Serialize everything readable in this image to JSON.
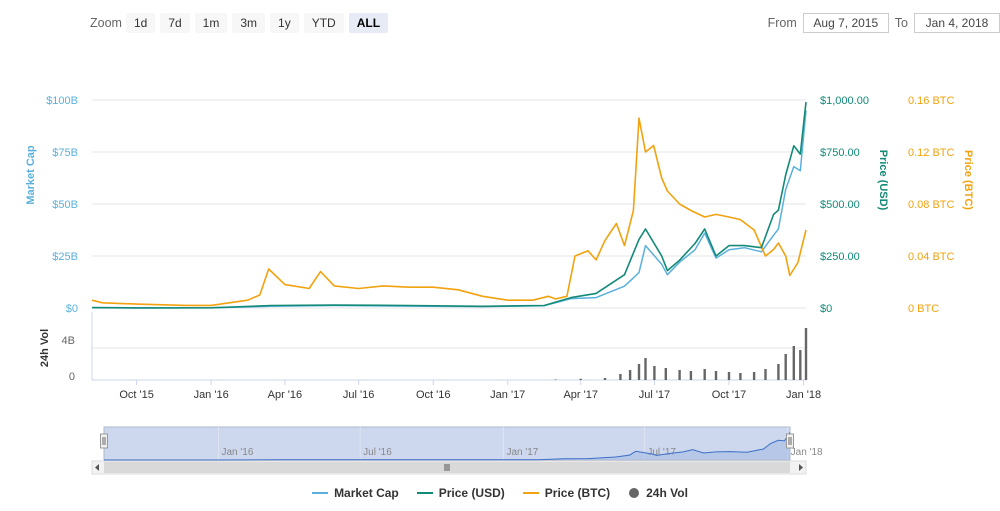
{
  "zoom": {
    "label": "Zoom",
    "buttons": [
      "1d",
      "7d",
      "1m",
      "3m",
      "1y",
      "YTD",
      "ALL"
    ],
    "active": "ALL"
  },
  "range": {
    "from_label": "From",
    "from_value": "Aug 7, 2015",
    "to_label": "To",
    "to_value": "Jan 4, 2018"
  },
  "colors": {
    "market_cap": "#5ab0dc",
    "price_usd": "#138a78",
    "price_btc": "#f2a20e",
    "volume": "#666666",
    "grid": "#e6e6e6",
    "navigator_fill": "#cdd7ee"
  },
  "chart_data": {
    "type": "line",
    "x_range": [
      "2015-08-07",
      "2018-01-04"
    ],
    "x_ticks": [
      "Oct '15",
      "Jan '16",
      "Apr '16",
      "Jul '16",
      "Oct '16",
      "Jan '17",
      "Apr '17",
      "Jul '17",
      "Oct '17",
      "Jan '18"
    ],
    "navigator_ticks": [
      "Jan '16",
      "Jul '16",
      "Jan '17",
      "Jul '17",
      "Jan '18"
    ],
    "axes": {
      "market_cap": {
        "label": "Market Cap",
        "ticks": [
          "$0",
          "$25B",
          "$50B",
          "$75B",
          "$100B"
        ],
        "range": [
          0,
          100
        ]
      },
      "price_usd": {
        "label": "Price (USD)",
        "ticks": [
          "$0",
          "$250.00",
          "$500.00",
          "$750.00",
          "$1,000.00"
        ],
        "range": [
          0,
          1000
        ]
      },
      "price_btc": {
        "label": "Price (BTC)",
        "ticks": [
          "0 BTC",
          "0.04 BTC",
          "0.08 BTC",
          "0.12 BTC",
          "0.16 BTC"
        ],
        "range": [
          0,
          0.16
        ]
      },
      "volume": {
        "label": "24h Vol",
        "ticks": [
          "0",
          "4B"
        ],
        "range": [
          0,
          6
        ]
      }
    },
    "series": [
      {
        "name": "Market Cap",
        "key": "market_cap",
        "x": [
          "2015-08-07",
          "2015-10-01",
          "2016-01-01",
          "2016-03-15",
          "2016-06-01",
          "2016-09-01",
          "2016-12-01",
          "2017-02-15",
          "2017-03-20",
          "2017-04-20",
          "2017-05-25",
          "2017-06-12",
          "2017-06-20",
          "2017-07-10",
          "2017-07-17",
          "2017-08-01",
          "2017-08-20",
          "2017-09-01",
          "2017-09-15",
          "2017-10-01",
          "2017-10-20",
          "2017-11-10",
          "2017-11-25",
          "2017-12-01",
          "2017-12-10",
          "2017-12-20",
          "2017-12-28",
          "2018-01-04"
        ],
        "values": [
          0.1,
          0.06,
          0.08,
          0.8,
          1.2,
          0.9,
          0.65,
          1.1,
          4.5,
          5.0,
          10.5,
          17,
          30,
          21,
          16,
          22,
          28,
          36,
          24,
          28,
          29,
          27,
          35,
          38,
          57,
          68,
          66,
          95
        ]
      },
      {
        "name": "Price (USD)",
        "key": "price_usd",
        "x": [
          "2015-08-07",
          "2015-10-01",
          "2016-01-01",
          "2016-03-15",
          "2016-06-01",
          "2016-09-01",
          "2016-12-01",
          "2017-02-15",
          "2017-03-20",
          "2017-04-20",
          "2017-05-25",
          "2017-06-12",
          "2017-06-20",
          "2017-07-10",
          "2017-07-17",
          "2017-08-01",
          "2017-08-20",
          "2017-09-01",
          "2017-09-15",
          "2017-10-01",
          "2017-10-20",
          "2017-11-10",
          "2017-11-25",
          "2017-12-01",
          "2017-12-10",
          "2017-12-20",
          "2017-12-28",
          "2018-01-04"
        ],
        "values": [
          2,
          0.7,
          1,
          12,
          14,
          12,
          8,
          12,
          50,
          70,
          160,
          330,
          380,
          250,
          180,
          230,
          310,
          380,
          250,
          300,
          300,
          290,
          450,
          470,
          640,
          780,
          740,
          990
        ]
      },
      {
        "name": "Price (BTC)",
        "key": "price_btc",
        "x": [
          "2015-08-07",
          "2015-08-20",
          "2015-10-01",
          "2015-12-01",
          "2016-01-01",
          "2016-02-15",
          "2016-03-01",
          "2016-03-12",
          "2016-04-01",
          "2016-05-01",
          "2016-05-15",
          "2016-06-01",
          "2016-07-01",
          "2016-08-01",
          "2016-09-01",
          "2016-10-01",
          "2016-11-01",
          "2016-12-01",
          "2017-01-01",
          "2017-02-01",
          "2017-02-20",
          "2017-03-01",
          "2017-03-15",
          "2017-03-25",
          "2017-04-10",
          "2017-04-20",
          "2017-05-01",
          "2017-05-15",
          "2017-05-25",
          "2017-06-05",
          "2017-06-12",
          "2017-06-20",
          "2017-06-30",
          "2017-07-10",
          "2017-07-17",
          "2017-08-01",
          "2017-08-15",
          "2017-09-01",
          "2017-09-15",
          "2017-10-01",
          "2017-10-15",
          "2017-11-01",
          "2017-11-15",
          "2017-11-25",
          "2017-12-01",
          "2017-12-10",
          "2017-12-15",
          "2017-12-25",
          "2018-01-04"
        ],
        "values": [
          0.006,
          0.004,
          0.003,
          0.002,
          0.002,
          0.006,
          0.01,
          0.03,
          0.018,
          0.015,
          0.028,
          0.017,
          0.015,
          0.017,
          0.016,
          0.016,
          0.014,
          0.009,
          0.006,
          0.006,
          0.009,
          0.007,
          0.009,
          0.04,
          0.044,
          0.037,
          0.052,
          0.065,
          0.048,
          0.075,
          0.146,
          0.12,
          0.125,
          0.1,
          0.09,
          0.08,
          0.075,
          0.07,
          0.072,
          0.07,
          0.068,
          0.06,
          0.04,
          0.045,
          0.05,
          0.04,
          0.025,
          0.035,
          0.06
        ]
      }
    ],
    "volume": {
      "name": "24h Vol",
      "x": [
        "2017-03-01",
        "2017-04-01",
        "2017-05-01",
        "2017-05-20",
        "2017-06-01",
        "2017-06-12",
        "2017-06-20",
        "2017-07-01",
        "2017-07-15",
        "2017-08-01",
        "2017-08-15",
        "2017-09-01",
        "2017-09-15",
        "2017-10-01",
        "2017-10-15",
        "2017-11-01",
        "2017-11-15",
        "2017-12-01",
        "2017-12-10",
        "2017-12-20",
        "2017-12-28",
        "2018-01-04"
      ],
      "values": [
        0.05,
        0.12,
        0.2,
        0.6,
        1.0,
        1.6,
        2.2,
        1.4,
        1.2,
        1.0,
        0.9,
        1.1,
        0.9,
        0.8,
        0.7,
        0.8,
        1.1,
        1.6,
        2.6,
        3.4,
        3.0,
        5.2
      ]
    },
    "legend": [
      "Market Cap",
      "Price (USD)",
      "Price (BTC)",
      "24h Vol"
    ],
    "legend_position": "bottom-center"
  }
}
